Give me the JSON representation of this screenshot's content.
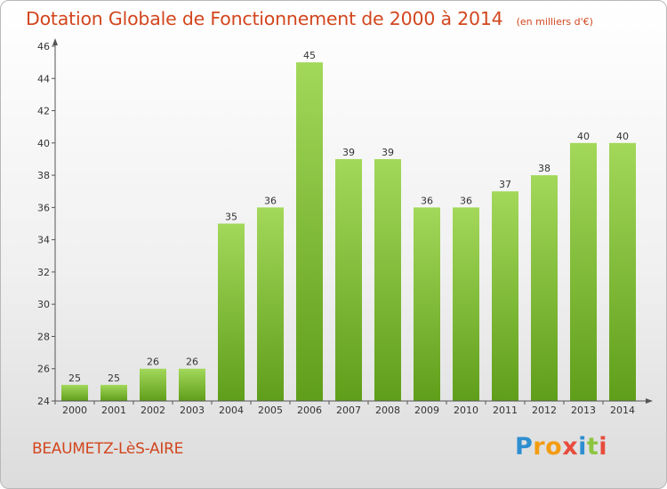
{
  "title": "Dotation Globale de Fonctionnement de 2000 à 2014",
  "subtitle": "(en milliers d'€)",
  "commune": "BEAUMETZ-LèS-AIRE",
  "logo": {
    "letters": [
      "P",
      "r",
      "o",
      "x",
      "i",
      "t",
      "i"
    ],
    "colors": [
      "#2e8fd0",
      "#f39c12",
      "#f39c12",
      "#e74c3c",
      "#2e8fd0",
      "#8cc63f",
      "#e74c3c"
    ]
  },
  "colors": {
    "title": "#d2461e",
    "bar_light": "#a3d85a",
    "bar_dark": "#5f9e1a"
  },
  "chart_data": {
    "type": "bar",
    "title": "Dotation Globale de Fonctionnement de 2000 à 2014",
    "subtitle": "(en milliers d'€)",
    "categories": [
      "2000",
      "2001",
      "2002",
      "2003",
      "2004",
      "2005",
      "2006",
      "2007",
      "2008",
      "2009",
      "2010",
      "2011",
      "2012",
      "2013",
      "2014"
    ],
    "values": [
      25,
      25,
      26,
      26,
      35,
      36,
      45,
      39,
      39,
      36,
      36,
      37,
      38,
      40,
      40
    ],
    "ylim": [
      24,
      46
    ],
    "yticks": [
      24,
      26,
      28,
      30,
      32,
      34,
      36,
      38,
      40,
      42,
      44,
      46
    ],
    "grid": false,
    "data_labels": true
  }
}
